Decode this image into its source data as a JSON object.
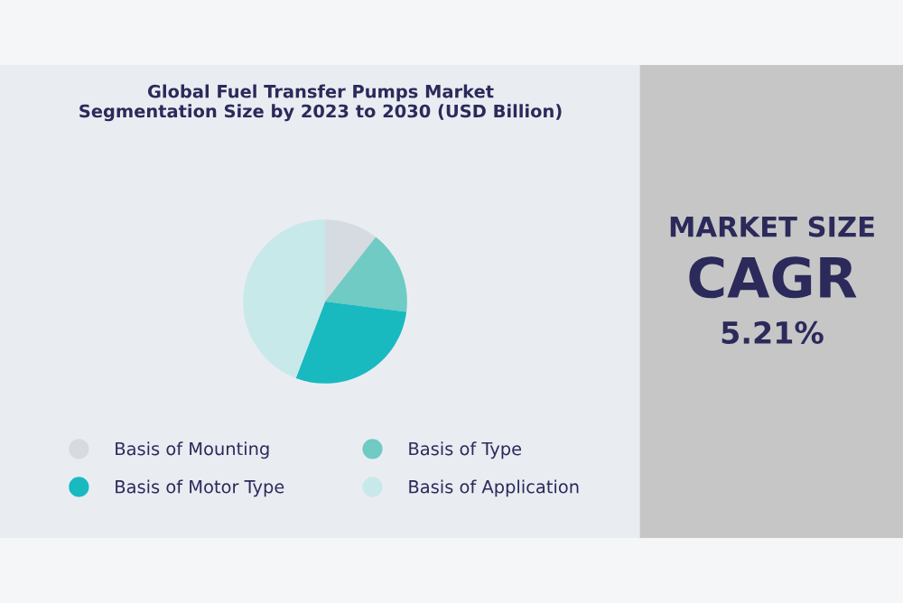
{
  "chart_data": [
    {
      "type": "pie",
      "title": "Global Fuel Transfer Pumps Market\nSegmentation Size by 2023 to 2030 (USD Billion)",
      "categories": [
        "Basis of Mounting",
        "Basis of Type",
        "Basis of Motor Type",
        "Basis of Application"
      ],
      "values": [
        10.6,
        16.4,
        28.8,
        44.2
      ],
      "colors": [
        "#d5dbe0",
        "#6fcbc4",
        "#19b9c0",
        "#c7e9ea"
      ],
      "legend": "bottom"
    },
    {
      "type": "other",
      "title": "MARKET SIZE",
      "subtitle": "CAGR",
      "annotations": [
        "5.21%"
      ]
    }
  ]
}
